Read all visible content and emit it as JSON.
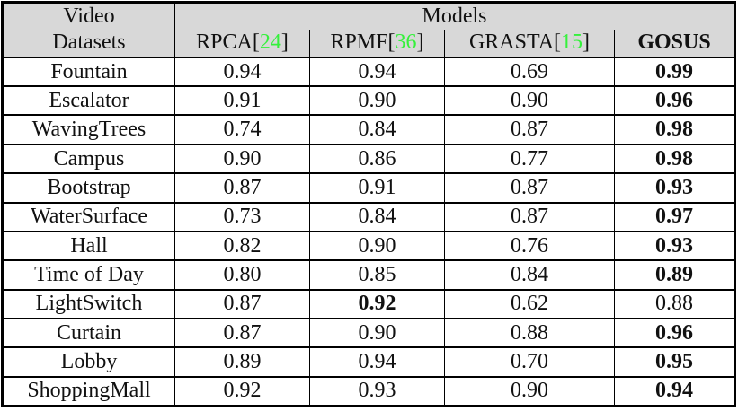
{
  "table": {
    "header": {
      "dataset_col_line1": "Video",
      "dataset_col_line2": "Datasets",
      "models_label": "Models",
      "columns": [
        {
          "label": "RPCA",
          "cite": "24",
          "bold": false
        },
        {
          "label": "RPMF",
          "cite": "36",
          "bold": false
        },
        {
          "label": "GRASTA",
          "cite": "15",
          "bold": false
        },
        {
          "label": "GOSUS",
          "cite": null,
          "bold": true
        }
      ]
    },
    "rows": [
      {
        "dataset": "Fountain",
        "values": [
          "0.94",
          "0.94",
          "0.69",
          "0.99"
        ],
        "bold_index": 3
      },
      {
        "dataset": "Escalator",
        "values": [
          "0.91",
          "0.90",
          "0.90",
          "0.96"
        ],
        "bold_index": 3
      },
      {
        "dataset": "WavingTrees",
        "values": [
          "0.74",
          "0.84",
          "0.87",
          "0.98"
        ],
        "bold_index": 3
      },
      {
        "dataset": "Campus",
        "values": [
          "0.90",
          "0.86",
          "0.77",
          "0.98"
        ],
        "bold_index": 3
      },
      {
        "dataset": "Bootstrap",
        "values": [
          "0.87",
          "0.91",
          "0.87",
          "0.93"
        ],
        "bold_index": 3
      },
      {
        "dataset": "WaterSurface",
        "values": [
          "0.73",
          "0.84",
          "0.87",
          "0.97"
        ],
        "bold_index": 3
      },
      {
        "dataset": "Hall",
        "values": [
          "0.82",
          "0.90",
          "0.76",
          "0.93"
        ],
        "bold_index": 3
      },
      {
        "dataset": "Time of Day",
        "values": [
          "0.80",
          "0.85",
          "0.84",
          "0.89"
        ],
        "bold_index": 3
      },
      {
        "dataset": "LightSwitch",
        "values": [
          "0.87",
          "0.92",
          "0.62",
          "0.88"
        ],
        "bold_index": 1
      },
      {
        "dataset": "Curtain",
        "values": [
          "0.87",
          "0.90",
          "0.88",
          "0.96"
        ],
        "bold_index": 3
      },
      {
        "dataset": "Lobby",
        "values": [
          "0.89",
          "0.94",
          "0.70",
          "0.95"
        ],
        "bold_index": 3
      },
      {
        "dataset": "ShoppingMall",
        "values": [
          "0.92",
          "0.93",
          "0.90",
          "0.94"
        ],
        "bold_index": 3
      }
    ]
  },
  "colors": {
    "header_bg": "#d8d8d8",
    "citation_green": "#35f13c",
    "border_black": "#000000",
    "text": "#111111"
  }
}
